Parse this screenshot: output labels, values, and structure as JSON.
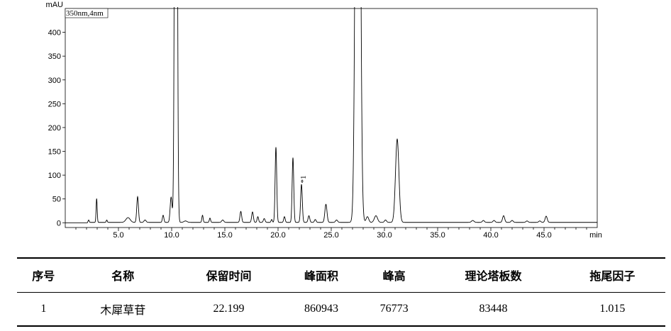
{
  "chart_data": {
    "type": "line",
    "ylabel": "mAU",
    "xlabel": "min",
    "detector_label": "350nm,4nm",
    "xlim": [
      0,
      50
    ],
    "ylim": [
      -10,
      450
    ],
    "x_ticks": [
      5.0,
      10.0,
      15.0,
      20.0,
      25.0,
      30.0,
      35.0,
      40.0,
      45.0
    ],
    "x_tick_labels": [
      "5.0",
      "10.0",
      "15.0",
      "20.0",
      "25.0",
      "30.0",
      "35.0",
      "40.0",
      "45.0"
    ],
    "y_ticks": [
      0,
      50,
      100,
      150,
      200,
      250,
      300,
      350,
      400
    ],
    "y_tick_labels": [
      "0",
      "50",
      "100",
      "150",
      "200",
      "250",
      "300",
      "350",
      "400"
    ],
    "baseline": 0,
    "peaks": [
      {
        "t": 2.2,
        "h": 5,
        "w": 0.05
      },
      {
        "t": 2.95,
        "h": 50,
        "w": 0.05
      },
      {
        "t": 3.9,
        "h": 5,
        "w": 0.05
      },
      {
        "t": 5.9,
        "h": 10,
        "w": 0.2
      },
      {
        "t": 6.8,
        "h": 54,
        "w": 0.08
      },
      {
        "t": 7.5,
        "h": 5,
        "w": 0.1
      },
      {
        "t": 9.2,
        "h": 15,
        "w": 0.07
      },
      {
        "t": 9.95,
        "h": 53,
        "w": 0.09
      },
      {
        "t": 10.4,
        "h": 2000,
        "w": 0.1
      },
      {
        "t": 11.3,
        "h": 3,
        "w": 0.15
      },
      {
        "t": 12.9,
        "h": 15,
        "w": 0.06
      },
      {
        "t": 13.6,
        "h": 9,
        "w": 0.06
      },
      {
        "t": 14.8,
        "h": 5,
        "w": 0.1
      },
      {
        "t": 16.5,
        "h": 23,
        "w": 0.08
      },
      {
        "t": 17.6,
        "h": 22,
        "w": 0.08
      },
      {
        "t": 18.1,
        "h": 12,
        "w": 0.07
      },
      {
        "t": 18.7,
        "h": 8,
        "w": 0.08
      },
      {
        "t": 19.4,
        "h": 6,
        "w": 0.06
      },
      {
        "t": 19.8,
        "h": 158,
        "w": 0.075
      },
      {
        "t": 20.6,
        "h": 12,
        "w": 0.07
      },
      {
        "t": 21.4,
        "h": 136,
        "w": 0.075
      },
      {
        "t": 22.2,
        "h": 80,
        "w": 0.08
      },
      {
        "t": 22.9,
        "h": 14,
        "w": 0.08
      },
      {
        "t": 23.5,
        "h": 6,
        "w": 0.08
      },
      {
        "t": 24.5,
        "h": 38,
        "w": 0.1
      },
      {
        "t": 25.5,
        "h": 5,
        "w": 0.1
      },
      {
        "t": 27.5,
        "h": 2000,
        "w": 0.18
      },
      {
        "t": 28.4,
        "h": 12,
        "w": 0.12
      },
      {
        "t": 29.2,
        "h": 14,
        "w": 0.15
      },
      {
        "t": 30.1,
        "h": 5,
        "w": 0.1
      },
      {
        "t": 31.2,
        "h": 175,
        "w": 0.16
      },
      {
        "t": 38.3,
        "h": 4,
        "w": 0.12
      },
      {
        "t": 39.3,
        "h": 4,
        "w": 0.1
      },
      {
        "t": 40.3,
        "h": 4,
        "w": 0.1
      },
      {
        "t": 41.2,
        "h": 14,
        "w": 0.1
      },
      {
        "t": 42.0,
        "h": 4,
        "w": 0.1
      },
      {
        "t": 43.4,
        "h": 3,
        "w": 0.1
      },
      {
        "t": 44.6,
        "h": 3,
        "w": 0.1
      },
      {
        "t": 45.2,
        "h": 13,
        "w": 0.1
      }
    ],
    "annotations": [
      {
        "label": "*1",
        "t": 22.199,
        "y": 80
      }
    ]
  },
  "table": {
    "headers": [
      "序号",
      "名称",
      "保留时间",
      "峰面积",
      "峰高",
      "理论塔板数",
      "拖尾因子"
    ],
    "rows": [
      [
        "1",
        "木犀草苷",
        "22.199",
        "860943",
        "76773",
        "83448",
        "1.015"
      ]
    ]
  }
}
